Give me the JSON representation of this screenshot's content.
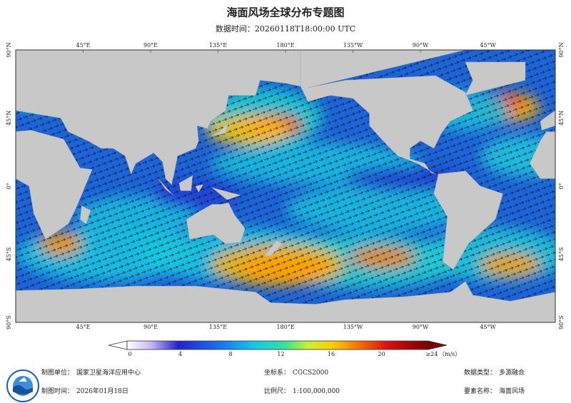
{
  "header": {
    "title": "海面风场全球分布专题图",
    "subtitle": "数据时间：20260118T18:00:00 UTC"
  },
  "map": {
    "lon_labels": [
      "45°E",
      "90°E",
      "135°E",
      "180°E",
      "135°W",
      "90°W",
      "45°W"
    ],
    "lat_labels": [
      "90°N",
      "45°N",
      "0°",
      "45°S",
      "90°S"
    ]
  },
  "colorbar": {
    "ticks": [
      0,
      4,
      8,
      12,
      16,
      20
    ],
    "max": {
      "value": 24,
      "label": "≥24"
    },
    "unit": "（m/s）"
  },
  "footer": {
    "items": [
      {
        "label": "制图单位：",
        "value": "国家卫星海洋应用中心"
      },
      {
        "label": "坐标系：",
        "value": "CGCS2000"
      },
      {
        "label": "数据类型：",
        "value": "多源融合"
      },
      {
        "label": "制图时间：",
        "value": "2026年01月18日"
      },
      {
        "label": "比例尺：",
        "value": "1:100,000,000"
      },
      {
        "label": "要素名称：",
        "value": "海面风场"
      }
    ]
  }
}
